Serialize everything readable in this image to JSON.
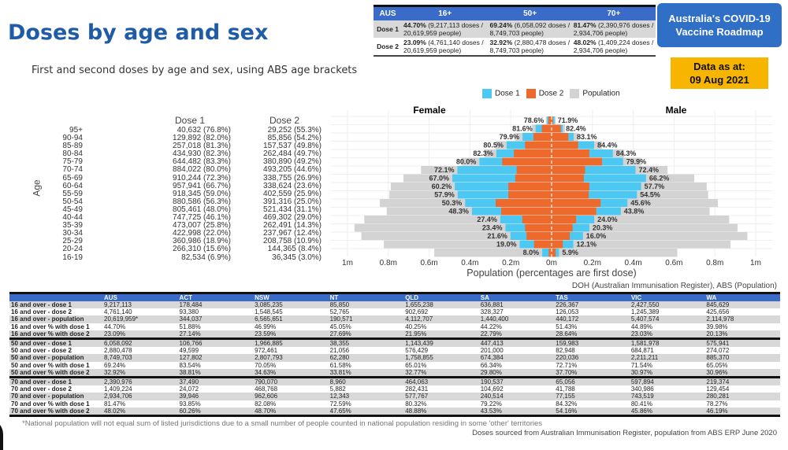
{
  "header": {
    "title": "Doses by age and sex",
    "subtitle": "First and second doses by age and sex, using ABS age brackets"
  },
  "roadmap": {
    "line1": "Australia's COVID-19",
    "line2": "Vaccine Roadmap"
  },
  "data_as_at": {
    "label": "Data as at:",
    "date": "09 Aug 2021"
  },
  "summary_table": {
    "headers": [
      "AUS",
      "16+",
      "50+",
      "70+"
    ],
    "rows": [
      {
        "label": "Dose 1",
        "cells": [
          {
            "pct": "44.70%",
            "detail": " (9,217,113 doses / 20,619,959 people)"
          },
          {
            "pct": "69.24%",
            "detail": " (6,058,092 doses / 8,749,703 people)"
          },
          {
            "pct": "81.47%",
            "detail": " (2,390,976 doses / 2,934,706 people)"
          }
        ]
      },
      {
        "label": "Dose 2",
        "cells": [
          {
            "pct": "23.09%",
            "detail": " (4,761,140 doses / 20,619,959 people)"
          },
          {
            "pct": "32.92%",
            "detail": " (2,880,478 doses / 8,749,703 people)"
          },
          {
            "pct": "48.02%",
            "detail": " (1,409,224 doses / 2,934,706 people)"
          }
        ]
      }
    ]
  },
  "legend": {
    "dose1": "Dose 1",
    "dose2": "Dose 2",
    "population": "Population"
  },
  "colors": {
    "dose1": "#4cc8f2",
    "dose2": "#ee6a2c",
    "population": "#d3d3d3",
    "accent": "#3a6bc8"
  },
  "age_table": {
    "axis_label": "Age",
    "dose1_header": "Dose 1",
    "dose2_header": "Dose 2",
    "rows": [
      [
        "95+",
        "40,632 (76.8%)",
        "29,252 (55.3%)"
      ],
      [
        "90-94",
        "129,892 (82.0%)",
        "85,856 (54.2%)"
      ],
      [
        "85-89",
        "257,018 (81.3%)",
        "157,537 (49.8%)"
      ],
      [
        "80-84",
        "434,930 (82.3%)",
        "262,484 (49.7%)"
      ],
      [
        "75-79",
        "644,482 (83.3%)",
        "380,890 (49.2%)"
      ],
      [
        "70-74",
        "884,022 (80.0%)",
        "493,205 (44.6%)"
      ],
      [
        "65-69",
        "910,244 (72.3%)",
        "338,755 (26.9%)"
      ],
      [
        "60-64",
        "957,941 (66.7%)",
        "338,624 (23.6%)"
      ],
      [
        "55-59",
        "918,345 (59.0%)",
        "402,559 (25.9%)"
      ],
      [
        "50-54",
        "880,586 (56.3%)",
        "391,316 (25.0%)"
      ],
      [
        "45-49",
        "805,461 (48.0%)",
        "521,434 (31.1%)"
      ],
      [
        "40-44",
        "747,725 (46.1%)",
        "469,302 (29.0%)"
      ],
      [
        "35-39",
        "473,007 (25.8%)",
        "262,491 (14.3%)"
      ],
      [
        "30-34",
        "422,998 (22.0%)",
        "237,967 (12.4%)"
      ],
      [
        "25-29",
        "360,986 (18.9%)",
        "208,758 (10.9%)"
      ],
      [
        "20-24",
        "266,310 (15.6%)",
        "144,365 (8.4%)"
      ],
      [
        "16-19",
        "82,534 (6.9%)",
        "36,345 (3.0%)"
      ]
    ]
  },
  "chart_data": {
    "type": "bar",
    "subtype": "population-pyramid",
    "categories": [
      "95+",
      "90-94",
      "85-89",
      "80-84",
      "75-79",
      "70-74",
      "65-69",
      "60-64",
      "55-59",
      "50-54",
      "45-49",
      "40-44",
      "35-39",
      "30-34",
      "25-29",
      "20-24",
      "16-19"
    ],
    "female_title": "Female",
    "male_title": "Male",
    "xlabel": "Population (percentages are first dose)",
    "xticks": [
      "1m",
      "0.8m",
      "0.6m",
      "0.4m",
      "0.2m",
      "0m",
      "0.2m",
      "0.4m",
      "0.6m",
      "0.8m",
      "1m"
    ],
    "xlim_millions": [
      -1,
      1
    ],
    "female": {
      "population": [
        0.028,
        0.096,
        0.178,
        0.274,
        0.329,
        0.442,
        0.64,
        0.726,
        0.788,
        0.795,
        0.842,
        0.808,
        0.918,
        0.966,
        0.932,
        0.822,
        0.575
      ],
      "dose1_pct": [
        "78.6%",
        "81.6%",
        "79.9%",
        "80.5%",
        "82.3%",
        "80.0%",
        "72.1%",
        "67.0%",
        "60.2%",
        "57.9%",
        "50.3%",
        "48.3%",
        "27.4%",
        "23.4%",
        "21.6%",
        "19.0%",
        "8.0%"
      ],
      "dose2": [
        0.016,
        0.048,
        0.089,
        0.13,
        0.185,
        0.242,
        0.171,
        0.178,
        0.212,
        0.212,
        0.274,
        0.247,
        0.144,
        0.13,
        0.123,
        0.086,
        0.014
      ]
    },
    "male": {
      "population": [
        0.02,
        0.066,
        0.13,
        0.247,
        0.356,
        0.438,
        0.568,
        0.699,
        0.76,
        0.767,
        0.815,
        0.774,
        0.87,
        0.911,
        0.959,
        0.877,
        0.616
      ],
      "dose1_pct": [
        "71.9%",
        "82.4%",
        "83.1%",
        "84.4%",
        "84.3%",
        "79.9%",
        "72.4%",
        "66.2%",
        "57.7%",
        "54.5%",
        "45.6%",
        "43.8%",
        "24.0%",
        "20.3%",
        "16.0%",
        "12.1%",
        "5.9%"
      ],
      "dose2": [
        0.007,
        0.045,
        0.082,
        0.13,
        0.185,
        0.247,
        0.164,
        0.158,
        0.185,
        0.182,
        0.24,
        0.219,
        0.12,
        0.103,
        0.089,
        0.055,
        0.02
      ]
    }
  },
  "source_top": "DOH (Australian Immunisation Register), ABS (Population)",
  "jurisdiction_table": {
    "headers": [
      "",
      "AUS",
      "ACT",
      "NSW",
      "NT",
      "QLD",
      "SA",
      "TAS",
      "VIC",
      "WA"
    ],
    "rows": [
      [
        "16 and over - dose 1",
        "9,217,113",
        "178,484",
        "3,085,235",
        "85,850",
        "1,655,238",
        "636,881",
        "226,367",
        "2,427,550",
        "845,629"
      ],
      [
        "16 and over - dose 2",
        "4,761,140",
        "93,380",
        "1,548,545",
        "52,765",
        "902,692",
        "328,327",
        "126,053",
        "1,245,389",
        "425,656"
      ],
      [
        "16 and over - population",
        "20,619,959*",
        "344,037",
        "6,565,651",
        "190,571",
        "4,112,707",
        "1,440,400",
        "440,172",
        "5,407,574",
        "2,114,978"
      ],
      [
        "16 and over % with dose 1",
        "44.70%",
        "51.88%",
        "46.99%",
        "45.05%",
        "40.25%",
        "44.22%",
        "51.43%",
        "44.89%",
        "39.98%"
      ],
      [
        "16 and over % with dose 2",
        "23.09%",
        "27.14%",
        "23.59%",
        "27.69%",
        "21.95%",
        "22.79%",
        "28.64%",
        "23.03%",
        "20.13%"
      ],
      [
        "50 and over - dose 1",
        "6,058,092",
        "106,766",
        "1,966,885",
        "38,355",
        "1,143,439",
        "447,413",
        "159,983",
        "1,581,978",
        "575,941"
      ],
      [
        "50 and over - dose 2",
        "2,880,478",
        "49,599",
        "972,461",
        "21,056",
        "576,429",
        "201,000",
        "82,948",
        "684,871",
        "274,072"
      ],
      [
        "50 and over - population",
        "8,749,703",
        "127,802",
        "2,807,793",
        "62,280",
        "1,758,855",
        "674,384",
        "220,036",
        "2,211,211",
        "885,370"
      ],
      [
        "50 and over % with dose 1",
        "69.24%",
        "83.54%",
        "70.05%",
        "61.58%",
        "65.01%",
        "66.34%",
        "72.71%",
        "71.54%",
        "65.05%"
      ],
      [
        "50 and over % with dose 2",
        "32.92%",
        "38.81%",
        "34.63%",
        "33.81%",
        "32.77%",
        "29.80%",
        "37.70%",
        "30.97%",
        "30.96%"
      ],
      [
        "70 and over - dose 1",
        "2,390,976",
        "37,490",
        "790,070",
        "8,960",
        "464,063",
        "190,537",
        "65,056",
        "597,894",
        "219,374"
      ],
      [
        "70 and over - dose 2",
        "1,409,224",
        "24,072",
        "468,768",
        "5,882",
        "282,431",
        "104,692",
        "41,788",
        "340,986",
        "129,454"
      ],
      [
        "70 and over - population",
        "2,934,706",
        "39,946",
        "962,606",
        "12,343",
        "577,767",
        "240,514",
        "77,155",
        "743,519",
        "280,281"
      ],
      [
        "70 and over % with dose 1",
        "81.47%",
        "93.85%",
        "82.08%",
        "72.59%",
        "80.32%",
        "79.22%",
        "84.32%",
        "80.41%",
        "78.27%"
      ],
      [
        "70 and over % with dose 2",
        "48.02%",
        "60.26%",
        "48.70%",
        "47.65%",
        "48.88%",
        "43.53%",
        "54.16%",
        "45.86%",
        "46.19%"
      ]
    ]
  },
  "footnote": "*National population will not equal sum of listed jurisdictions due to a small number of people counted in national population residing in some 'other' territories",
  "footer_source": "Doses sourced from Australian Immunisation Register, population from ABS ERP June 2020"
}
